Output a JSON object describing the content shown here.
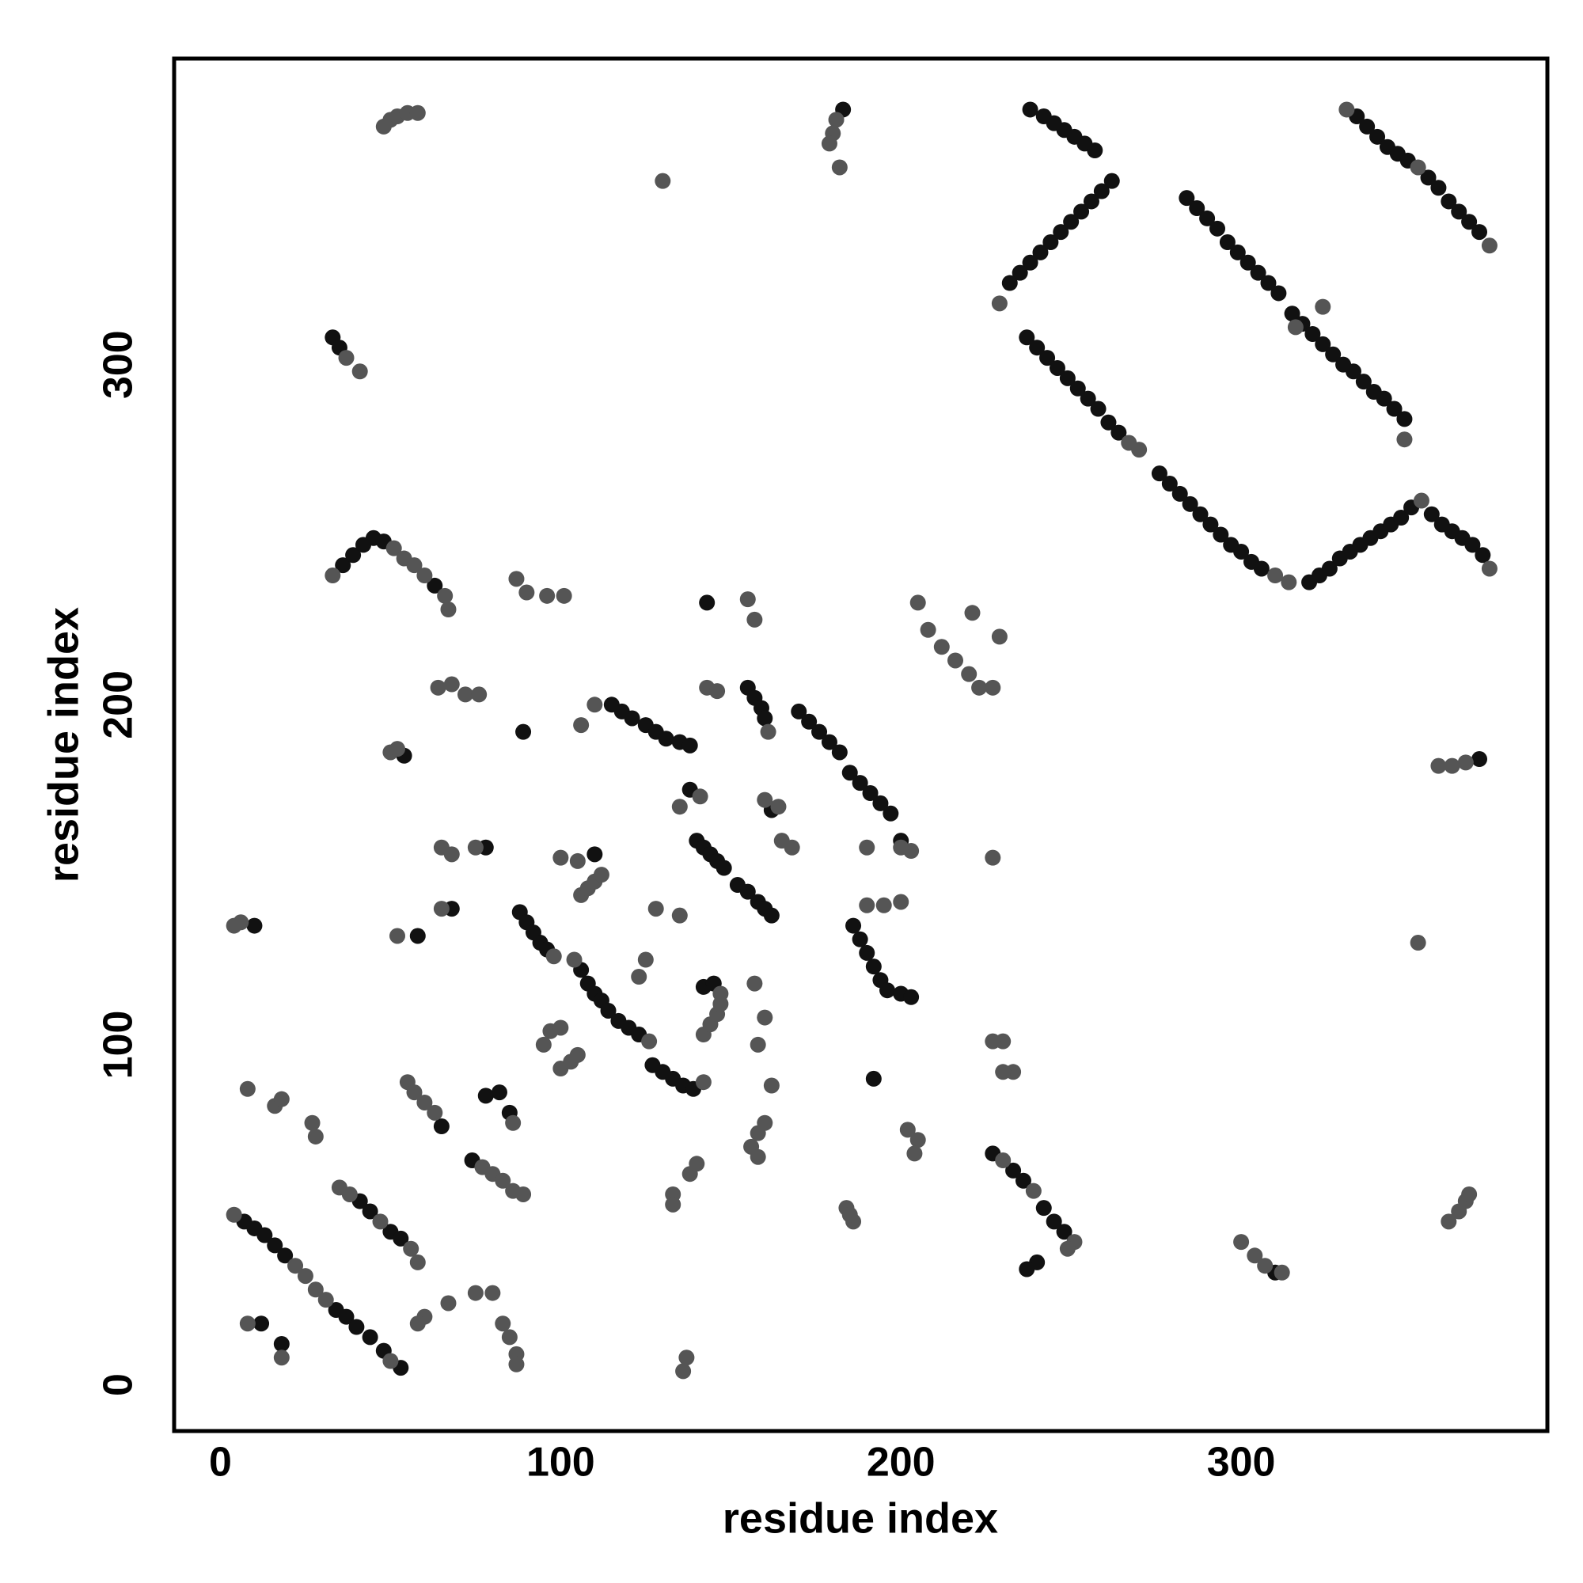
{
  "chart_data": {
    "type": "scatter",
    "xlabel": "residue index",
    "ylabel": "residue index",
    "xlim": [
      -13.6,
      390
    ],
    "ylim": [
      -13.6,
      390
    ],
    "xticks": [
      0,
      100,
      200,
      300
    ],
    "yticks": [
      0,
      100,
      200,
      300
    ],
    "series": [
      {
        "color": "#111111",
        "x": [
          238,
          242,
          245,
          248,
          251,
          254,
          257,
          262,
          259,
          256,
          253,
          250,
          247,
          244,
          241,
          238,
          235,
          232,
          237,
          240,
          243,
          246,
          249,
          252,
          255,
          258,
          261,
          264,
          284,
          287,
          290,
          293,
          296,
          299,
          302,
          305,
          308,
          311,
          315,
          318,
          321,
          324,
          327,
          330,
          333,
          336,
          339,
          342,
          345,
          348,
          276,
          279,
          282,
          285,
          288,
          291,
          294,
          297,
          300,
          303,
          306,
          320,
          323,
          326,
          329,
          332,
          335,
          338,
          341,
          344,
          347,
          350,
          356,
          359,
          362,
          365,
          368,
          371,
          334,
          337,
          340,
          343,
          346,
          349,
          355,
          358,
          361,
          364,
          367,
          370,
          170,
          173,
          176,
          179,
          182,
          185,
          188,
          191,
          194,
          197,
          200,
          155,
          157,
          159,
          160,
          115,
          118,
          121,
          125,
          128,
          131,
          135,
          138,
          140,
          142,
          144,
          146,
          148,
          152,
          155,
          158,
          160,
          162,
          88,
          90,
          92,
          94,
          96,
          106,
          108,
          110,
          112,
          114,
          117,
          120,
          123,
          127,
          130,
          133,
          136,
          139,
          186,
          188,
          190,
          192,
          194,
          196,
          200,
          203,
          7,
          10,
          13,
          16,
          19,
          34,
          37,
          40,
          44,
          48,
          53,
          41,
          44,
          50,
          53,
          18,
          12,
          65,
          74,
          78,
          82,
          85,
          227,
          233,
          236,
          242,
          245,
          248,
          240,
          237,
          310,
          370,
          192,
          143,
          89,
          138,
          142,
          145,
          33,
          35,
          183,
          36,
          39,
          42,
          45,
          48,
          63,
          54,
          10,
          68,
          58,
          78,
          110,
          162
        ],
        "values": [
          375,
          373,
          371,
          369,
          367,
          365,
          363,
          354,
          351,
          348,
          345,
          342,
          339,
          336,
          333,
          330,
          327,
          324,
          308,
          305,
          302,
          299,
          296,
          293,
          290,
          287,
          283,
          280,
          349,
          346,
          343,
          340,
          336,
          333,
          330,
          327,
          324,
          321,
          315,
          312,
          309,
          306,
          303,
          300,
          298,
          295,
          292,
          290,
          287,
          284,
          268,
          265,
          262,
          259,
          256,
          253,
          250,
          247,
          245,
          242,
          240,
          236,
          238,
          240,
          243,
          245,
          247,
          249,
          251,
          253,
          255,
          258,
          256,
          253,
          251,
          249,
          247,
          244,
          373,
          370,
          367,
          364,
          362,
          360,
          355,
          352,
          348,
          345,
          342,
          339,
          198,
          195,
          192,
          189,
          186,
          180,
          177,
          174,
          171,
          168,
          160,
          205,
          202,
          199,
          196,
          200,
          198,
          196,
          194,
          192,
          190,
          189,
          188,
          160,
          158,
          156,
          154,
          152,
          147,
          145,
          142,
          140,
          138,
          139,
          136,
          133,
          130,
          128,
          122,
          118,
          115,
          113,
          110,
          107,
          105,
          103,
          94,
          92,
          90,
          88,
          87,
          135,
          131,
          127,
          123,
          119,
          116,
          115,
          114,
          48,
          46,
          44,
          41,
          38,
          22,
          20,
          17,
          14,
          10,
          5,
          54,
          51,
          45,
          43,
          12,
          18,
          76,
          66,
          85,
          86,
          80,
          68,
          63,
          60,
          52,
          48,
          45,
          36,
          34,
          33,
          184,
          90,
          230,
          192,
          175,
          117,
          118,
          308,
          305,
          375,
          241,
          244,
          247,
          249,
          248,
          235,
          185,
          135,
          140,
          132,
          158,
          156,
          169
        ]
      },
      {
        "color": "#555555",
        "x": [
          373,
          331,
          373,
          352,
          229,
          267,
          270,
          348,
          310,
          314,
          353,
          203,
          161,
          98,
          104,
          126,
          142,
          142,
          144,
          146,
          147,
          106,
          108,
          110,
          112,
          165,
          168,
          190,
          200,
          227,
          190,
          195,
          200,
          230,
          227,
          233,
          230,
          4,
          22,
          25,
          28,
          31,
          50,
          35,
          38,
          47,
          56,
          58,
          18,
          8,
          27,
          28,
          16,
          18,
          8,
          55,
          57,
          60,
          63,
          77,
          80,
          83,
          86,
          89,
          86,
          60,
          58,
          67,
          75,
          80,
          83,
          85,
          87,
          87,
          133,
          133,
          137,
          136,
          138,
          140,
          156,
          158,
          158,
          160,
          184,
          186,
          185,
          202,
          205,
          204,
          230,
          239,
          251,
          249,
          300,
          304,
          307,
          312,
          361,
          364,
          366,
          367,
          352,
          358,
          362,
          366,
          324,
          316,
          37,
          41,
          48,
          50,
          52,
          55,
          58,
          181,
          180,
          179,
          182,
          130,
          33,
          51,
          54,
          57,
          60,
          66,
          67,
          64,
          68,
          72,
          76,
          50,
          52,
          4,
          6,
          96,
          101,
          87,
          90,
          155,
          157,
          205,
          208,
          212,
          216,
          220,
          223,
          227,
          221,
          229,
          106,
          110,
          143,
          146,
          65,
          52,
          65,
          68,
          75,
          100,
          105,
          141,
          135,
          160,
          164,
          125,
          123,
          128,
          135,
          147,
          157,
          160,
          158,
          162,
          95,
          97,
          100,
          100,
          103,
          105
        ],
        "values": [
          240,
          375,
          335,
          358,
          318,
          277,
          275,
          278,
          238,
          236,
          260,
          157,
          192,
          126,
          125,
          101,
          89,
          103,
          106,
          109,
          112,
          144,
          146,
          148,
          150,
          160,
          158,
          158,
          158,
          155,
          141,
          141,
          142,
          101,
          101,
          92,
          92,
          50,
          35,
          32,
          28,
          25,
          7,
          58,
          56,
          48,
          40,
          36,
          8,
          18,
          77,
          73,
          82,
          84,
          87,
          89,
          86,
          83,
          80,
          64,
          62,
          60,
          57,
          56,
          77,
          20,
          18,
          24,
          27,
          27,
          18,
          14,
          9,
          6,
          56,
          53,
          8,
          4,
          62,
          65,
          70,
          74,
          67,
          77,
          52,
          48,
          50,
          75,
          72,
          68,
          66,
          57,
          42,
          40,
          42,
          38,
          35,
          33,
          48,
          51,
          54,
          56,
          130,
          182,
          182,
          183,
          317,
          311,
          302,
          298,
          370,
          372,
          373,
          374,
          374,
          372,
          368,
          365,
          358,
          354,
          238,
          246,
          243,
          241,
          238,
          232,
          228,
          205,
          206,
          203,
          203,
          186,
          187,
          135,
          136,
          232,
          232,
          237,
          233,
          231,
          225,
          230,
          222,
          217,
          213,
          209,
          205,
          205,
          227,
          220,
          194,
          200,
          205,
          204,
          140,
          132,
          158,
          156,
          158,
          155,
          154,
          173,
          170,
          172,
          170,
          125,
          120,
          140,
          138,
          115,
          118,
          108,
          100,
          88,
          100,
          104,
          105,
          93,
          95,
          97
        ]
      }
    ]
  }
}
